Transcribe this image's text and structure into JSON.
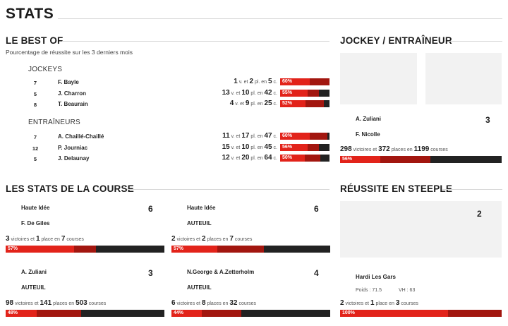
{
  "page_title": "STATS",
  "best_of": {
    "title": "LE BEST OF",
    "subtitle": "Pourcentage de réussite sur les 3 derniers mois",
    "jockeys": {
      "label": "JOCKEYS",
      "rows": [
        {
          "rank": "7",
          "name": "F. Bayle",
          "v": "1",
          "p": "2",
          "c": "5",
          "pct": "60%",
          "win_frac": 0.6,
          "place_frac": 0.4
        },
        {
          "rank": "5",
          "name": "J. Charron",
          "v": "13",
          "p": "10",
          "c": "42",
          "pct": "55%",
          "win_frac": 0.55,
          "place_frac": 0.24
        },
        {
          "rank": "8",
          "name": "T. Beaurain",
          "v": "4",
          "p": "9",
          "c": "25",
          "pct": "52%",
          "win_frac": 0.52,
          "place_frac": 0.36
        }
      ]
    },
    "trainers": {
      "label": "ENTRAÎNEURS",
      "rows": [
        {
          "rank": "7",
          "name": "A. Chaillé-Chaillé",
          "v": "11",
          "p": "17",
          "c": "47",
          "pct": "60%",
          "win_frac": 0.6,
          "place_frac": 0.36
        },
        {
          "rank": "12",
          "name": "P. Journiac",
          "v": "15",
          "p": "10",
          "c": "45",
          "pct": "56%",
          "win_frac": 0.56,
          "place_frac": 0.22
        },
        {
          "rank": "5",
          "name": "J. Delaunay",
          "v": "12",
          "p": "20",
          "c": "64",
          "pct": "50%",
          "win_frac": 0.5,
          "place_frac": 0.31
        }
      ]
    },
    "words": {
      "v": "v. et",
      "pl": "pl. en",
      "c": "c."
    }
  },
  "jockey_trainer": {
    "title": "JOCKEY / ENTRAÎNEUR",
    "jockey": "A. Zuliani",
    "trainer": "F. Nicolle",
    "number": "3",
    "wins": "298",
    "places": "372",
    "races": "1199",
    "pct": "56%",
    "win_frac": 0.248,
    "place_frac": 0.31
  },
  "race_stats": {
    "title": "LES STATS DE LA COURSE",
    "cards": [
      {
        "line1": "Haute Idée",
        "line2": "F. De Giles",
        "number": "6",
        "wins": "3",
        "places": "1",
        "races": "7",
        "pct": "57%",
        "win_frac": 0.43,
        "place_frac": 0.14
      },
      {
        "line1": "Haute Idée",
        "line2": "AUTEUIL",
        "number": "6",
        "wins": "2",
        "places": "2",
        "races": "7",
        "pct": "57%",
        "win_frac": 0.29,
        "place_frac": 0.29
      },
      {
        "line1": "A. Zuliani",
        "line2": "AUTEUIL",
        "number": "3",
        "wins": "98",
        "places": "141",
        "races": "503",
        "pct": "48%",
        "win_frac": 0.195,
        "place_frac": 0.28
      },
      {
        "line1": "N.George & A.Zetterholm",
        "line2": "AUTEUIL",
        "number": "4",
        "wins": "6",
        "places": "8",
        "races": "32",
        "pct": "44%",
        "win_frac": 0.19,
        "place_frac": 0.25
      }
    ],
    "words": {
      "wins": "victoires et",
      "win_singular": "victoire et",
      "places": "places en",
      "place_singular": "place en",
      "races": "courses"
    }
  },
  "steeple": {
    "title": "RÉUSSITE EN STEEPLE",
    "number": "2",
    "horse": "Hardi Les Gars",
    "poids": "Poids : 71.5",
    "vh": "VH : 63",
    "wins": "2",
    "places": "1",
    "races": "3",
    "pct": "100%",
    "win_frac": 0.67,
    "place_frac": 0.33
  }
}
